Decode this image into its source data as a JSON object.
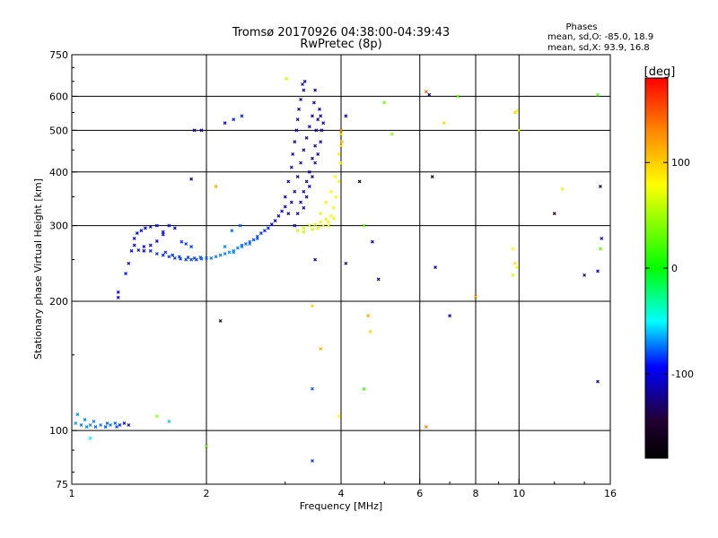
{
  "chart_data": {
    "type": "scatter",
    "title": "Tromsø 20170926 04:38:00-04:39:43",
    "subtitle": "RwPretec (8p)",
    "xlabel": "Frequency [MHz]",
    "ylabel": "Stationary phase Virtual Height [km]",
    "x_scale": "log",
    "y_scale": "log",
    "xlim": [
      1,
      16
    ],
    "ylim": [
      75,
      750
    ],
    "x_ticks": [
      1,
      2,
      4,
      6,
      8,
      10,
      16
    ],
    "x_tick_labels": [
      "1",
      "2",
      "4",
      "6",
      "8",
      "10",
      "16"
    ],
    "y_ticks": [
      75,
      100,
      200,
      300,
      400,
      500,
      600,
      750
    ],
    "y_tick_labels": [
      "75",
      "100",
      "200",
      "300",
      "400",
      "500",
      "600",
      "750"
    ],
    "grid": true,
    "phases_box": {
      "title": "Phases",
      "line1": "mean, sd,O: -85.0, 18.9",
      "line2": "mean, sd,X:  93.9, 16.8"
    },
    "colorbar": {
      "label": "[deg]",
      "range": [
        -180,
        180
      ],
      "ticks": [
        100,
        0,
        -100
      ],
      "tick_labels": [
        "100",
        "0",
        "-100"
      ],
      "colors": [
        "#ff0000",
        "#ff8800",
        "#ffff00",
        "#00ff00",
        "#00ffff",
        "#0000ff",
        "#220033",
        "#000000"
      ]
    },
    "series": [
      {
        "points": [
          [
            1.02,
            104,
            -70
          ],
          [
            1.05,
            103,
            -75
          ],
          [
            1.08,
            102,
            -70
          ],
          [
            1.1,
            103,
            -72
          ],
          [
            1.13,
            102,
            -78
          ],
          [
            1.16,
            103,
            -75
          ],
          [
            1.19,
            102,
            -80
          ],
          [
            1.22,
            103,
            -76
          ],
          [
            1.25,
            104,
            -80
          ],
          [
            1.28,
            103,
            -90
          ],
          [
            1.31,
            104,
            -95
          ],
          [
            1.34,
            103,
            -100
          ],
          [
            1.03,
            109,
            -70
          ],
          [
            1.07,
            106,
            -72
          ],
          [
            1.12,
            105,
            -75
          ],
          [
            1.2,
            104,
            -78
          ],
          [
            1.26,
            102,
            -82
          ],
          [
            1.1,
            96,
            -50
          ],
          [
            1.27,
            204,
            -100
          ],
          [
            1.27,
            210,
            -95
          ],
          [
            1.32,
            232,
            -95
          ],
          [
            1.34,
            245,
            -100
          ],
          [
            1.36,
            262,
            -98
          ],
          [
            1.38,
            280,
            -100
          ],
          [
            1.4,
            288,
            -98
          ],
          [
            1.43,
            292,
            -96
          ],
          [
            1.46,
            296,
            -95
          ],
          [
            1.5,
            298,
            -100
          ],
          [
            1.55,
            300,
            -96
          ],
          [
            1.6,
            290,
            -98
          ],
          [
            1.38,
            270,
            -98
          ],
          [
            1.41,
            263,
            -95
          ],
          [
            1.45,
            262,
            -98
          ],
          [
            1.5,
            270,
            -96
          ],
          [
            1.55,
            276,
            -95
          ],
          [
            1.6,
            286,
            -98
          ],
          [
            1.65,
            300,
            -100
          ],
          [
            1.7,
            296,
            -98
          ],
          [
            1.45,
            268,
            -92
          ],
          [
            1.5,
            262,
            -90
          ],
          [
            1.55,
            258,
            -90
          ],
          [
            1.6,
            256,
            -88
          ],
          [
            1.65,
            254,
            -88
          ],
          [
            1.7,
            252,
            -86
          ],
          [
            1.75,
            251,
            -85
          ],
          [
            1.8,
            250,
            -85
          ],
          [
            1.85,
            250,
            -84
          ],
          [
            1.9,
            250,
            -82
          ],
          [
            1.95,
            251,
            -80
          ],
          [
            2.0,
            252,
            -78
          ],
          [
            1.62,
            260,
            -90
          ],
          [
            1.68,
            256,
            -88
          ],
          [
            1.74,
            254,
            -86
          ],
          [
            1.82,
            253,
            -85
          ],
          [
            1.88,
            252,
            -84
          ],
          [
            1.94,
            253,
            -82
          ],
          [
            1.76,
            275,
            -88
          ],
          [
            1.8,
            272,
            -86
          ],
          [
            1.85,
            268,
            -85
          ],
          [
            2.05,
            252,
            -76
          ],
          [
            2.1,
            254,
            -75
          ],
          [
            2.15,
            256,
            -74
          ],
          [
            2.2,
            258,
            -74
          ],
          [
            2.25,
            260,
            -72
          ],
          [
            2.3,
            262,
            -74
          ],
          [
            2.35,
            266,
            -75
          ],
          [
            2.4,
            270,
            -76
          ],
          [
            2.45,
            272,
            -78
          ],
          [
            2.5,
            275,
            -80
          ],
          [
            2.55,
            278,
            -82
          ],
          [
            2.6,
            283,
            -85
          ],
          [
            2.65,
            288,
            -86
          ],
          [
            2.7,
            292,
            -88
          ],
          [
            2.75,
            296,
            -90
          ],
          [
            2.8,
            302,
            -95
          ],
          [
            2.85,
            308,
            -100
          ],
          [
            2.9,
            316,
            -105
          ],
          [
            2.95,
            324,
            -108
          ],
          [
            3.0,
            332,
            -110
          ],
          [
            2.3,
            260,
            -70
          ],
          [
            2.4,
            268,
            -72
          ],
          [
            2.5,
            272,
            -76
          ],
          [
            2.6,
            280,
            -80
          ],
          [
            2.2,
            268,
            -72
          ],
          [
            2.28,
            292,
            -76
          ],
          [
            2.38,
            300,
            -78
          ],
          [
            3.0,
            350,
            -110
          ],
          [
            3.05,
            380,
            -112
          ],
          [
            3.1,
            410,
            -115
          ],
          [
            3.12,
            440,
            -115
          ],
          [
            3.15,
            470,
            -118
          ],
          [
            3.18,
            500,
            -115
          ],
          [
            3.2,
            530,
            -115
          ],
          [
            3.22,
            560,
            -118
          ],
          [
            3.25,
            590,
            -120
          ],
          [
            3.3,
            620,
            -118
          ],
          [
            3.28,
            640,
            -118
          ],
          [
            3.32,
            650,
            -115
          ],
          [
            3.05,
            320,
            -110
          ],
          [
            3.1,
            340,
            -112
          ],
          [
            3.15,
            360,
            -115
          ],
          [
            3.2,
            390,
            -116
          ],
          [
            3.25,
            420,
            -115
          ],
          [
            3.3,
            450,
            -118
          ],
          [
            3.35,
            480,
            -116
          ],
          [
            3.4,
            510,
            -118
          ],
          [
            3.45,
            540,
            -115
          ],
          [
            3.48,
            580,
            -118
          ],
          [
            3.5,
            620,
            -118
          ],
          [
            3.15,
            300,
            -108
          ],
          [
            3.2,
            320,
            -110
          ],
          [
            3.25,
            340,
            -112
          ],
          [
            3.3,
            360,
            -114
          ],
          [
            3.35,
            380,
            -115
          ],
          [
            3.4,
            400,
            -116
          ],
          [
            3.45,
            430,
            -116
          ],
          [
            3.5,
            460,
            -118
          ],
          [
            3.52,
            500,
            -116
          ],
          [
            3.55,
            530,
            -118
          ],
          [
            3.58,
            560,
            -118
          ],
          [
            3.5,
            420,
            -116
          ],
          [
            3.55,
            440,
            -118
          ],
          [
            3.6,
            470,
            -118
          ],
          [
            3.62,
            500,
            -120
          ],
          [
            3.65,
            520,
            -118
          ],
          [
            3.6,
            540,
            -118
          ],
          [
            3.3,
            330,
            -110
          ],
          [
            3.35,
            350,
            -112
          ],
          [
            3.4,
            370,
            -114
          ],
          [
            3.45,
            390,
            -116
          ],
          [
            3.2,
            292,
            80
          ],
          [
            3.3,
            296,
            82
          ],
          [
            3.4,
            300,
            85
          ],
          [
            3.5,
            302,
            88
          ],
          [
            3.6,
            306,
            90
          ],
          [
            3.7,
            310,
            92
          ],
          [
            3.8,
            316,
            95
          ],
          [
            3.85,
            330,
            98
          ],
          [
            3.9,
            350,
            100
          ],
          [
            3.95,
            380,
            100
          ],
          [
            3.98,
            420,
            102
          ],
          [
            4.0,
            460,
            105
          ],
          [
            3.3,
            290,
            80
          ],
          [
            3.45,
            294,
            84
          ],
          [
            3.55,
            296,
            86
          ],
          [
            3.65,
            300,
            88
          ],
          [
            3.75,
            306,
            90
          ],
          [
            3.85,
            312,
            94
          ],
          [
            3.6,
            320,
            90
          ],
          [
            3.7,
            340,
            95
          ],
          [
            3.8,
            360,
            98
          ],
          [
            3.88,
            390,
            100
          ],
          [
            3.95,
            440,
            102
          ],
          [
            4.0,
            490,
            108
          ],
          [
            4.0,
            500,
            125
          ],
          [
            4.02,
            470,
            118
          ],
          [
            3.75,
            300,
            92
          ],
          [
            1.88,
            500,
            -120
          ],
          [
            1.95,
            500,
            -115
          ],
          [
            2.2,
            520,
            -95
          ],
          [
            2.3,
            530,
            -92
          ],
          [
            2.4,
            540,
            -90
          ],
          [
            1.85,
            385,
            -130
          ],
          [
            2.1,
            370,
            120
          ],
          [
            3.02,
            660,
            80
          ],
          [
            3.5,
            250,
            -110
          ],
          [
            2.15,
            180,
            -150
          ],
          [
            3.45,
            195,
            110
          ],
          [
            3.6,
            155,
            120
          ],
          [
            3.45,
            125,
            -80
          ],
          [
            3.45,
            85,
            -85
          ],
          [
            3.95,
            108,
            100
          ],
          [
            4.1,
            245,
            -130
          ],
          [
            4.1,
            540,
            -110
          ],
          [
            4.4,
            380,
            -150
          ],
          [
            4.5,
            300,
            40
          ],
          [
            4.6,
            185,
            120
          ],
          [
            4.65,
            170,
            110
          ],
          [
            4.5,
            125,
            25
          ],
          [
            4.7,
            275,
            -120
          ],
          [
            4.85,
            225,
            -130
          ],
          [
            5.0,
            580,
            50
          ],
          [
            5.2,
            490,
            60
          ],
          [
            6.2,
            615,
            140
          ],
          [
            6.3,
            605,
            -130
          ],
          [
            6.4,
            390,
            -150
          ],
          [
            6.5,
            240,
            -110
          ],
          [
            7.0,
            185,
            -110
          ],
          [
            7.3,
            600,
            40
          ],
          [
            6.8,
            520,
            110
          ],
          [
            6.2,
            102,
            130
          ],
          [
            8.0,
            205,
            120
          ],
          [
            9.8,
            550,
            110
          ],
          [
            9.9,
            555,
            105
          ],
          [
            9.7,
            265,
            100
          ],
          [
            9.8,
            245,
            105
          ],
          [
            9.9,
            240,
            100
          ],
          [
            9.7,
            230,
            105
          ],
          [
            10.0,
            500,
            90
          ],
          [
            12.0,
            320,
            -150
          ],
          [
            12.5,
            365,
            90
          ],
          [
            14.0,
            230,
            -130
          ],
          [
            15.0,
            605,
            30
          ],
          [
            15.2,
            370,
            -150
          ],
          [
            15.3,
            280,
            -110
          ],
          [
            15.0,
            130,
            -120
          ],
          [
            15.2,
            265,
            40
          ],
          [
            15.0,
            235,
            -100
          ],
          [
            1.55,
            108,
            60
          ],
          [
            1.65,
            105,
            -60
          ],
          [
            2.0,
            92,
            40
          ]
        ]
      }
    ]
  }
}
